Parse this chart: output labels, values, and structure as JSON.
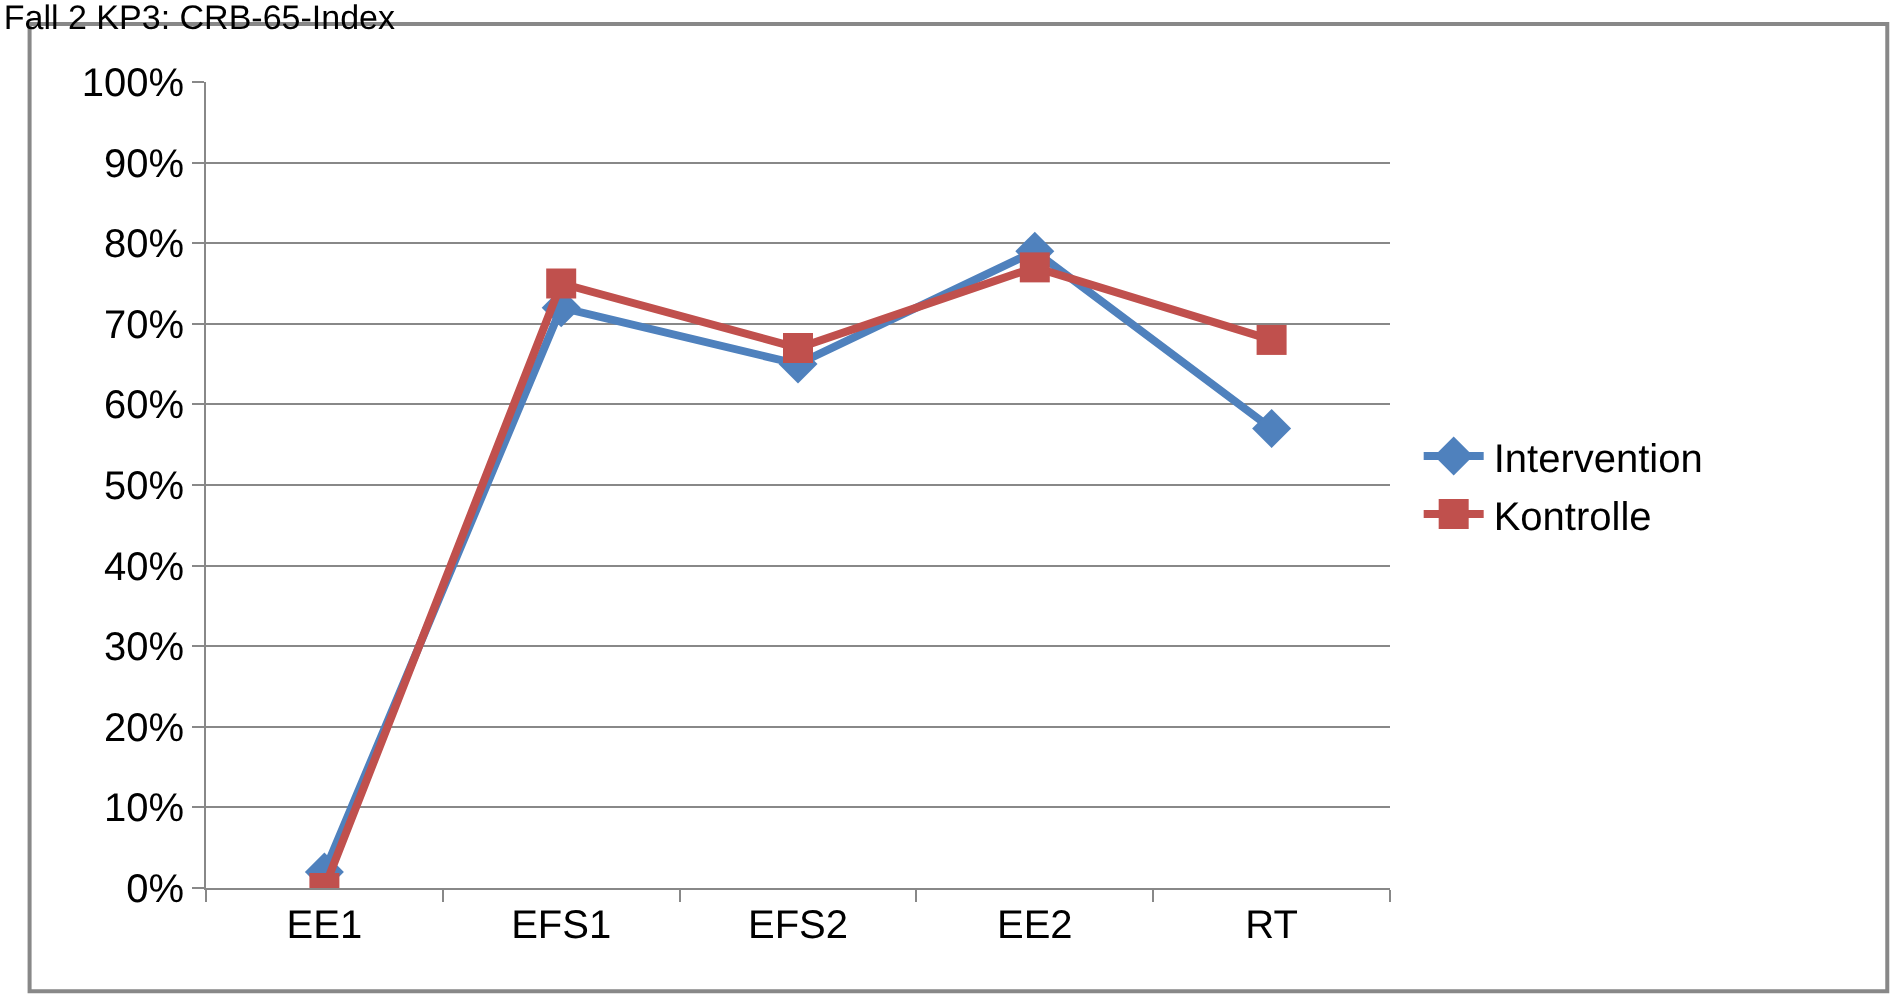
{
  "chart_data": {
    "type": "line",
    "title": "Fall 2 KP3: CRB-65-Index",
    "categories": [
      "EE1",
      "EFS1",
      "EFS2",
      "EE2",
      "RT"
    ],
    "series": [
      {
        "name": "Intervention",
        "color": "#4f81bd",
        "marker": "diamond",
        "values": [
          0.02,
          0.72,
          0.65,
          0.79,
          0.57
        ]
      },
      {
        "name": "Kontrolle",
        "color": "#c0504d",
        "marker": "square",
        "values": [
          0.0,
          0.75,
          0.67,
          0.77,
          0.68
        ]
      }
    ],
    "ylim": [
      0,
      1
    ],
    "yticks": [
      {
        "value": 0,
        "label": "0%"
      },
      {
        "value": 0.1,
        "label": "10%"
      },
      {
        "value": 0.2,
        "label": "20%"
      },
      {
        "value": 0.3,
        "label": "30%"
      },
      {
        "value": 0.4,
        "label": "40%"
      },
      {
        "value": 0.5,
        "label": "50%"
      },
      {
        "value": 0.6,
        "label": "60%"
      },
      {
        "value": 0.7,
        "label": "70%"
      },
      {
        "value": 0.8,
        "label": "80%"
      },
      {
        "value": 0.9,
        "label": "90%"
      },
      {
        "value": 1,
        "label": "100%"
      }
    ],
    "grid": "y",
    "legend": "right",
    "line_style": "solid"
  }
}
